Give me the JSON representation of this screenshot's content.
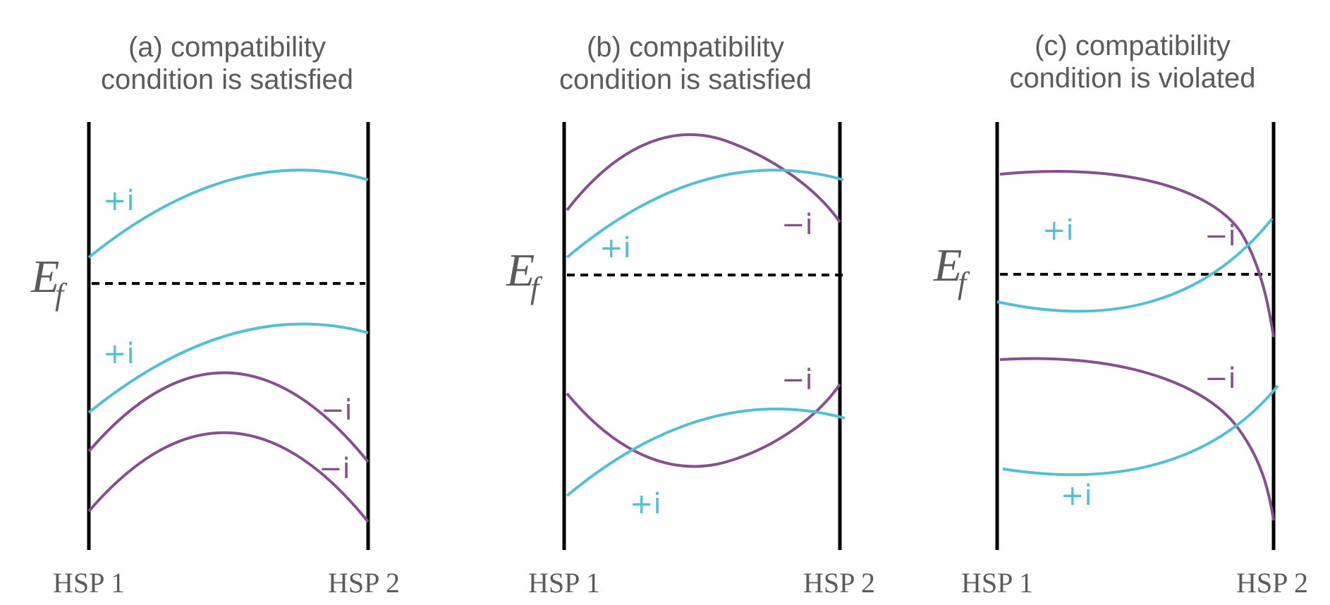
{
  "colors": {
    "plus_band": "#52C0D2",
    "minus_band": "#86508F",
    "axis": "#000000",
    "text": "#5b5b5b"
  },
  "fermi_label": {
    "main": "E",
    "sub": "f"
  },
  "hsp_labels": {
    "left": "HSP 1",
    "right": "HSP 2"
  },
  "panels": [
    {
      "title_line1": "(a) compatibility",
      "title_line2": "condition is satisfied",
      "band_labels": [
        {
          "text": "+i",
          "sign": "plus"
        },
        {
          "text": "+i",
          "sign": "plus"
        },
        {
          "text": "−i",
          "sign": "minus"
        },
        {
          "text": "−i",
          "sign": "minus"
        }
      ]
    },
    {
      "title_line1": "(b) compatibility",
      "title_line2": "condition is satisfied",
      "band_labels": [
        {
          "text": "+i",
          "sign": "plus"
        },
        {
          "text": "−i",
          "sign": "minus"
        },
        {
          "text": "−i",
          "sign": "minus"
        },
        {
          "text": "+i",
          "sign": "plus"
        }
      ]
    },
    {
      "title_line1": "(c) compatibility",
      "title_line2": "condition is violated",
      "band_labels": [
        {
          "text": "+i",
          "sign": "plus"
        },
        {
          "text": "−i",
          "sign": "minus"
        },
        {
          "text": "−i",
          "sign": "minus"
        },
        {
          "text": "+i",
          "sign": "plus"
        }
      ]
    }
  ]
}
